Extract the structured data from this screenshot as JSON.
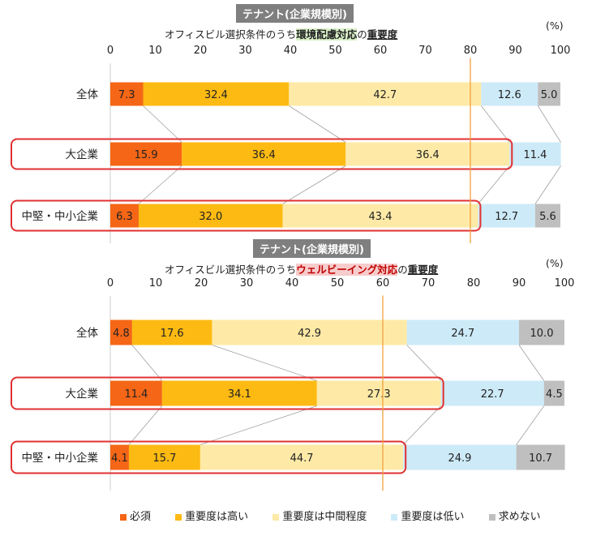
{
  "colors": {
    "must": "#f56616",
    "high": "#fdba12",
    "mid": "#feeaa6",
    "low": "#cdeaf8",
    "none": "#bfbfbf",
    "highlight_box": "#e03030",
    "ref_line": "#f0a040",
    "connector": "#a0a0a0"
  },
  "legend": [
    "必須",
    "重要度は高い",
    "重要度は中間程度",
    "重要度は低い",
    "求めない"
  ],
  "charts": [
    {
      "tag": "テナント(企業規模別)",
      "subtitle_pre": "オフィスビル選択条件のうち",
      "subtitle_hl": "環境配慮対応",
      "subtitle_mid": "の",
      "subtitle_post": "重要度",
      "unit": "(%)"
    },
    {
      "tag": "テナント(企業規模別)",
      "subtitle_pre": "オフィスビル選択条件のうち",
      "subtitle_hl": "ウェルビーイング対応",
      "subtitle_mid": "の",
      "subtitle_post": "重要度",
      "unit": "(%)"
    }
  ],
  "chart_data": [
    {
      "type": "bar",
      "orientation": "horizontal-stacked-100",
      "categories": [
        "全体",
        "大企業",
        "中堅・中小企業"
      ],
      "highlighted_categories": [
        "大企業",
        "中堅・中小企業"
      ],
      "series": [
        {
          "name": "必須",
          "values": [
            7.3,
            15.9,
            6.3
          ]
        },
        {
          "name": "重要度は高い",
          "values": [
            32.4,
            36.4,
            32.0
          ]
        },
        {
          "name": "重要度は中間程度",
          "values": [
            42.7,
            36.4,
            43.4
          ]
        },
        {
          "name": "重要度は低い",
          "values": [
            12.6,
            11.4,
            12.7
          ]
        },
        {
          "name": "求めない",
          "values": [
            5.0,
            0,
            5.6
          ]
        }
      ],
      "labels": [
        [
          "7.3",
          "32.4",
          "42.7",
          "12.6",
          "5.0"
        ],
        [
          "15.9",
          "36.4",
          "36.4",
          "11.4",
          ""
        ],
        [
          "6.3",
          "32.0",
          "43.4",
          "12.7",
          "5.6"
        ]
      ],
      "xticks": [
        "0",
        "10",
        "20",
        "30",
        "40",
        "50",
        "60",
        "70",
        "80",
        "90",
        "100"
      ],
      "xlim": [
        0,
        100
      ],
      "reference_line_x": 80,
      "legend_position": "bottom"
    },
    {
      "type": "bar",
      "orientation": "horizontal-stacked-100",
      "categories": [
        "全体",
        "大企業",
        "中堅・中小企業"
      ],
      "highlighted_categories": [
        "大企業",
        "中堅・中小企業"
      ],
      "series": [
        {
          "name": "必須",
          "values": [
            4.8,
            11.4,
            4.1
          ]
        },
        {
          "name": "重要度は高い",
          "values": [
            17.6,
            34.1,
            15.7
          ]
        },
        {
          "name": "重要度は中間程度",
          "values": [
            42.9,
            27.3,
            44.7
          ]
        },
        {
          "name": "重要度は低い",
          "values": [
            24.7,
            22.7,
            24.9
          ]
        },
        {
          "name": "求めない",
          "values": [
            10.0,
            4.5,
            10.7
          ]
        }
      ],
      "labels": [
        [
          "4.8",
          "17.6",
          "42.9",
          "24.7",
          "10.0"
        ],
        [
          "11.4",
          "34.1",
          "27.3",
          "22.7",
          "4.5"
        ],
        [
          "4.1",
          "15.7",
          "44.7",
          "24.9",
          "10.7"
        ]
      ],
      "xticks": [
        "0",
        "10",
        "20",
        "30",
        "40",
        "50",
        "60",
        "70",
        "80",
        "90",
        "100"
      ],
      "xlim": [
        0,
        100
      ],
      "reference_line_x": 60,
      "legend_position": "bottom"
    }
  ]
}
